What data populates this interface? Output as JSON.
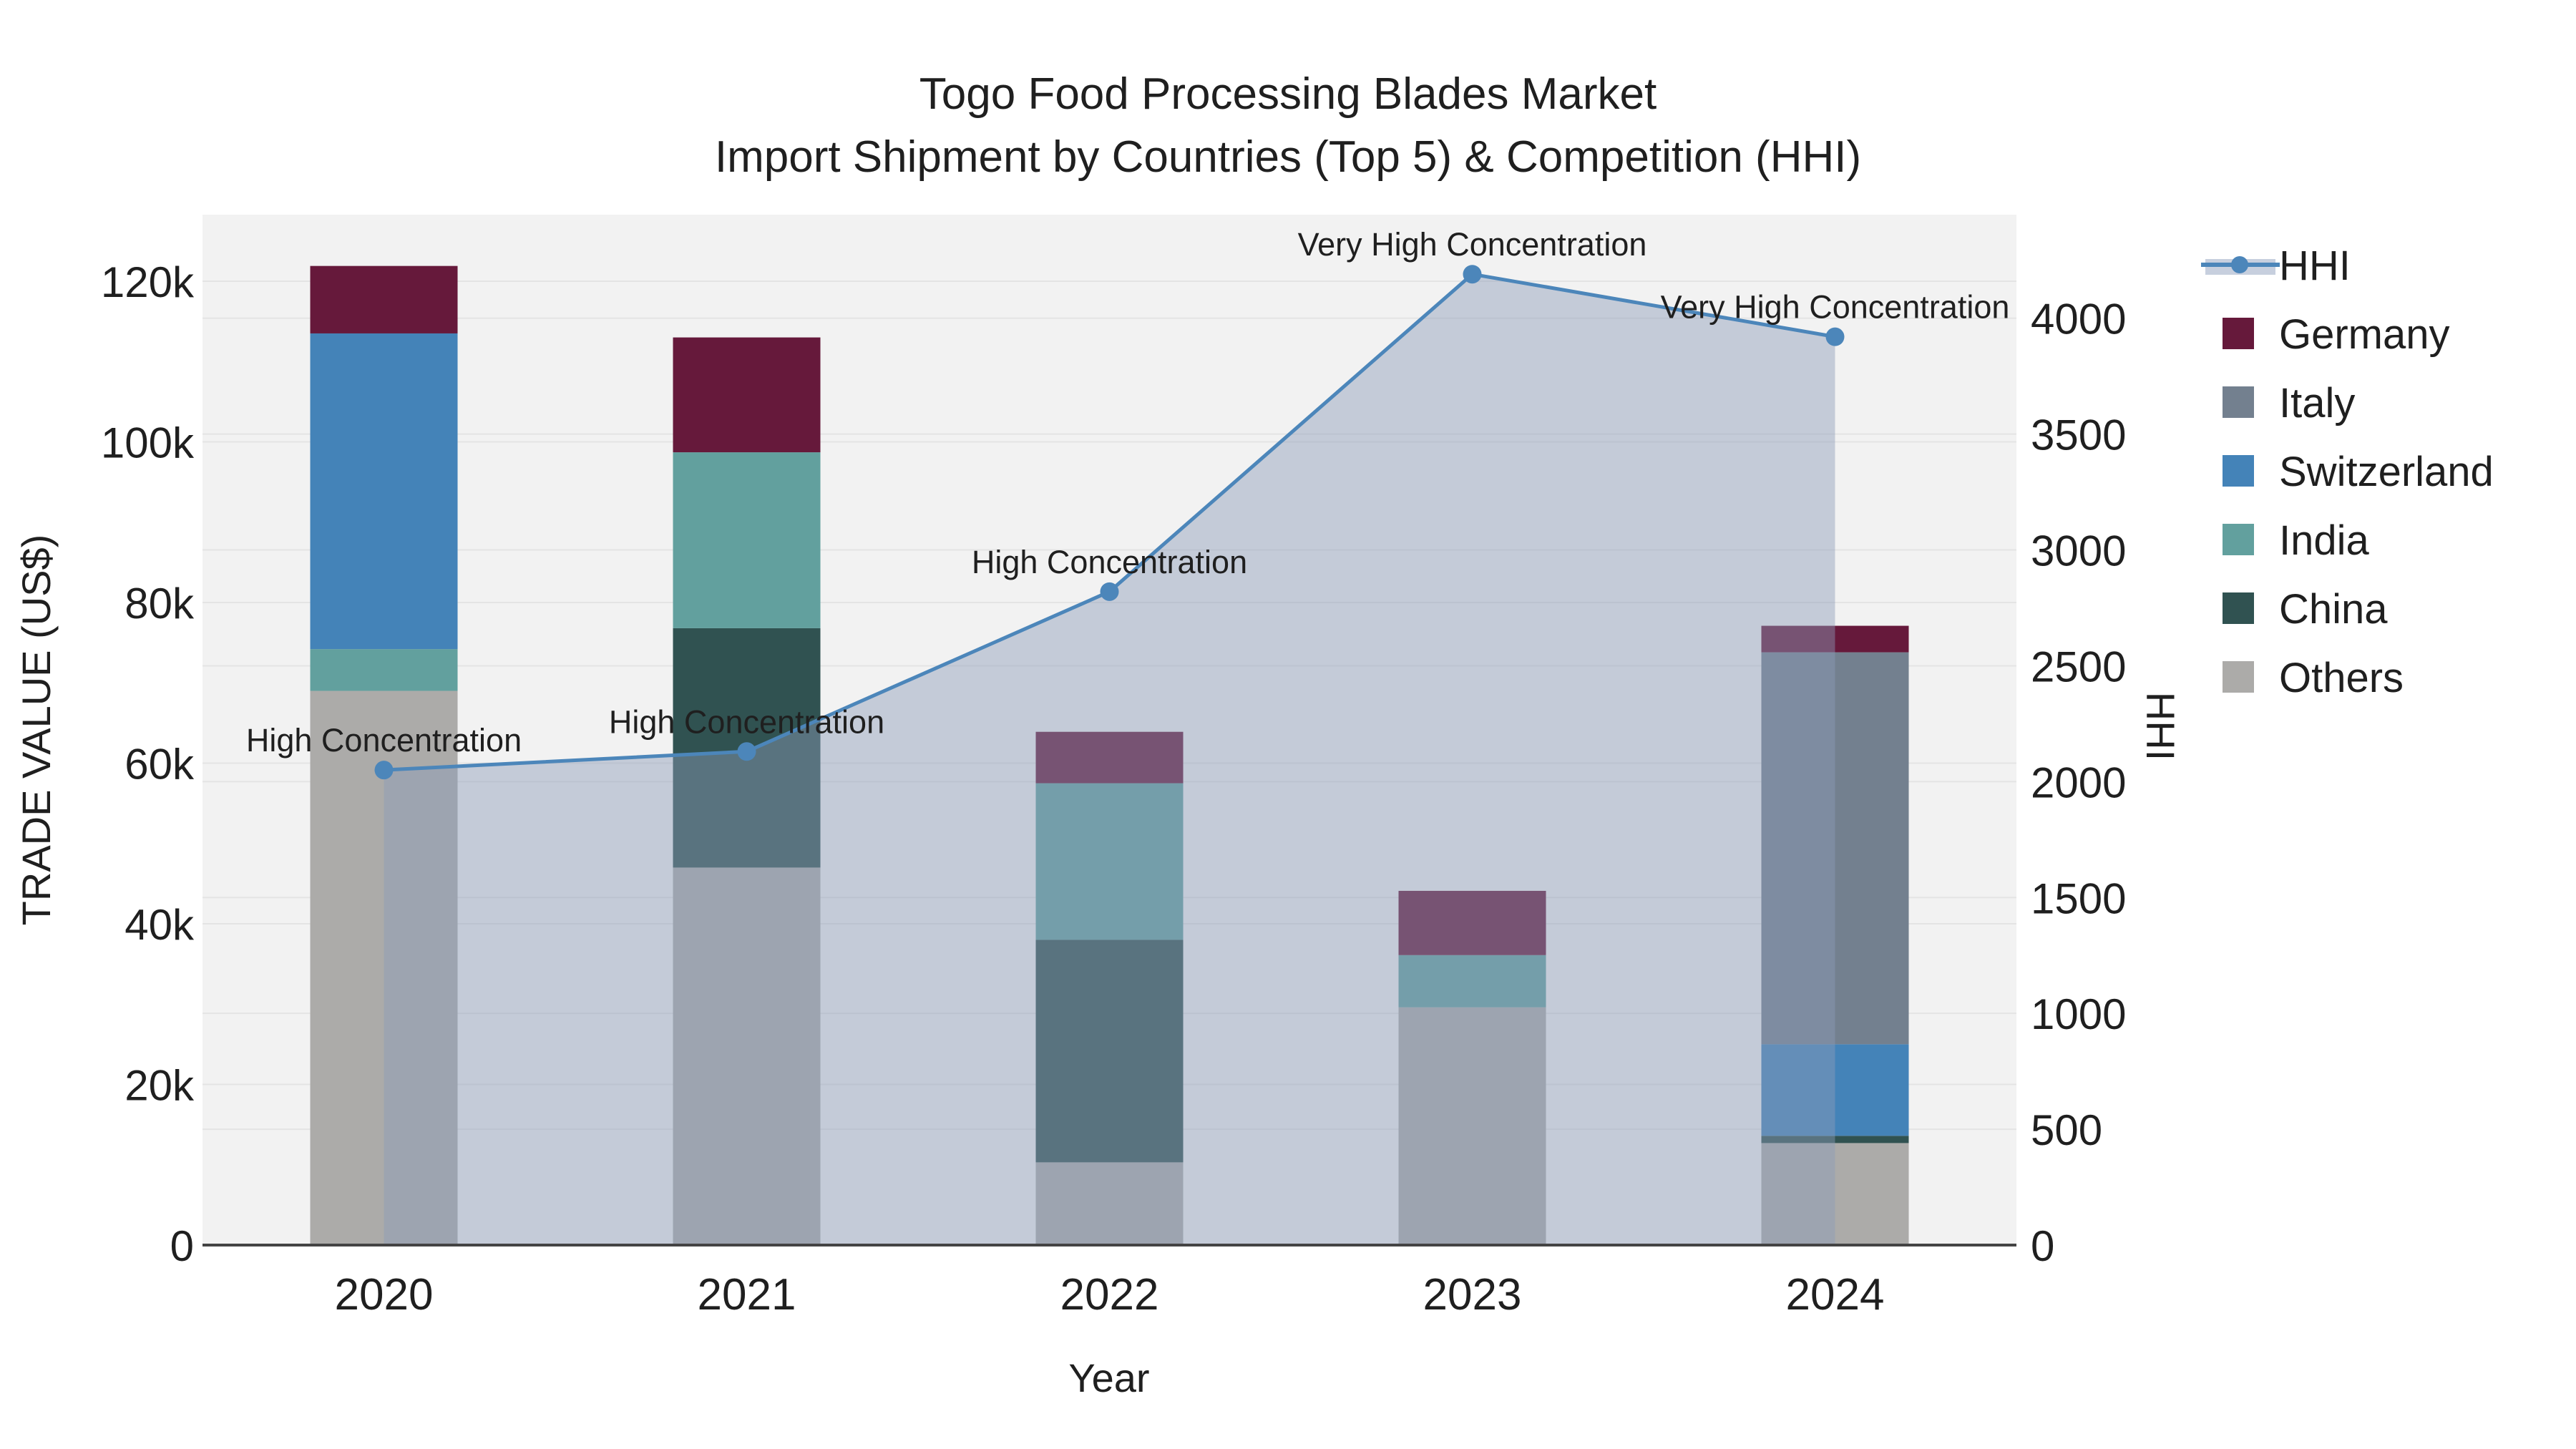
{
  "title": {
    "line1": "Togo Food Processing Blades Market",
    "line2": "Import Shipment by Countries (Top 5) & Competition (HHI)"
  },
  "x_axis": {
    "title": "Year",
    "tick_labels": [
      "2020",
      "2021",
      "2022",
      "2023",
      "2024"
    ]
  },
  "y_left_axis": {
    "title": "TRADE VALUE (US$)",
    "tick_labels": [
      "0",
      "20k",
      "40k",
      "60k",
      "80k",
      "100k",
      "120k"
    ],
    "tick_values": [
      0,
      20000,
      40000,
      60000,
      80000,
      100000,
      120000
    ],
    "range": [
      0,
      128285
    ]
  },
  "y_right_axis": {
    "title": "HHI",
    "tick_labels": [
      "0",
      "500",
      "1000",
      "1500",
      "2000",
      "2500",
      "3000",
      "3500",
      "4000"
    ],
    "tick_values": [
      0,
      500,
      1000,
      1500,
      2000,
      2500,
      3000,
      3500,
      4000
    ],
    "range": [
      0,
      4447
    ]
  },
  "legend": {
    "items": [
      {
        "label": "HHI",
        "type": "line",
        "color": "#4C86BA",
        "band_color": "#C7CFDE"
      },
      {
        "label": "Germany",
        "type": "swatch",
        "color": "#66193B"
      },
      {
        "label": "Italy",
        "type": "swatch",
        "color": "#73808F"
      },
      {
        "label": "Switzerland",
        "type": "swatch",
        "color": "#4483B8"
      },
      {
        "label": "India",
        "type": "swatch",
        "color": "#62A09E"
      },
      {
        "label": "China",
        "type": "swatch",
        "color": "#305251"
      },
      {
        "label": "Others",
        "type": "swatch",
        "color": "#ACABA9"
      }
    ]
  },
  "chart_data": {
    "type": "combo-stacked-bar-and-line",
    "categories": [
      "2020",
      "2021",
      "2022",
      "2023",
      "2024"
    ],
    "bar_series": [
      {
        "name": "Others",
        "color": "#ACABA9",
        "values": [
          69000,
          47000,
          10300,
          29600,
          12700
        ]
      },
      {
        "name": "China",
        "color": "#305251",
        "values": [
          0,
          29800,
          27700,
          0,
          900
        ]
      },
      {
        "name": "India",
        "color": "#62A09E",
        "values": [
          5200,
          21900,
          19500,
          6500,
          0
        ]
      },
      {
        "name": "Switzerland",
        "color": "#4483B8",
        "values": [
          39300,
          0,
          0,
          0,
          11400
        ]
      },
      {
        "name": "Italy",
        "color": "#73808F",
        "values": [
          0,
          0,
          0,
          0,
          48800
        ]
      },
      {
        "name": "Germany",
        "color": "#66193B",
        "values": [
          8400,
          14300,
          6400,
          8000,
          3300
        ]
      }
    ],
    "line_series": {
      "name": "HHI",
      "color": "#4C86BA",
      "area_fill": "rgba(140,155,185,0.45)",
      "values": [
        2050,
        2130,
        2820,
        4190,
        3920
      ]
    },
    "annotations": [
      {
        "category": "2020",
        "text": "High Concentration"
      },
      {
        "category": "2021",
        "text": "High Concentration"
      },
      {
        "category": "2022",
        "text": "High Concentration"
      },
      {
        "category": "2023",
        "text": "Very High Concentration"
      },
      {
        "category": "2024",
        "text": "Very High Concentration"
      }
    ],
    "ylabel_left": "TRADE VALUE (US$)",
    "ylabel_right": "HHI",
    "xlabel": "Year",
    "grid": true,
    "legend_position": "right"
  },
  "colors": {
    "page_bg": "#FFFFFF",
    "plot_bg": "#F2F2F2",
    "gridline": "#E4E4E4",
    "axis_line": "#444444",
    "text": "#1F1F1F"
  }
}
